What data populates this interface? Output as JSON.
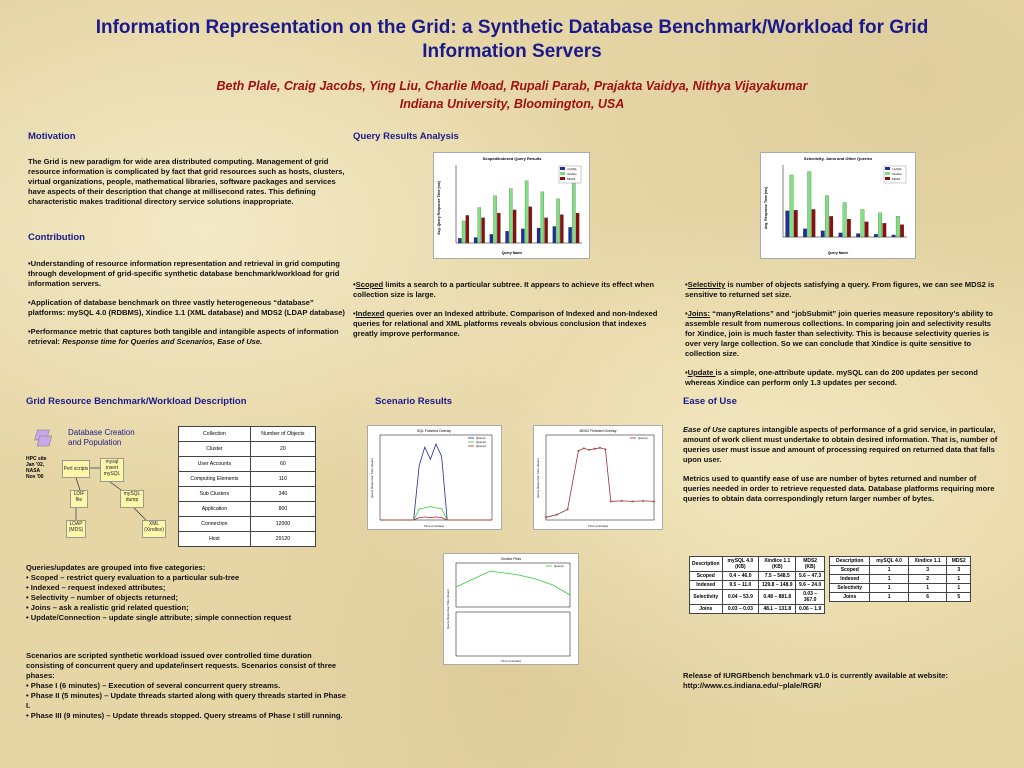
{
  "title": "Information Representation on the Grid: a Synthetic Database Benchmark/Workload for Grid Information Servers",
  "authors": "Beth Plale, Craig Jacobs, Ying Liu, Charlie Moad, Rupali Parab, Prajakta Vaidya, Nithya Vijayakumar",
  "affiliation": "Indiana University, Bloomington, USA",
  "motivation": {
    "heading": "Motivation",
    "text": "The Grid is new paradigm for wide area distributed computing. Management of grid resource information is complicated by fact that grid resources such as hosts, clusters, virtual organizations, people, mathematical libraries, software packages and services have aspects of their description that change at millisecond rates. This defining characteristic makes traditional directory service solutions inappropriate."
  },
  "contribution": {
    "heading": "Contribution",
    "b1": "•Understanding of resource information representation and retrieval in grid computing through development of grid-specific synthetic database benchmark/workload for grid information servers.",
    "b2": "•Application of database benchmark on three vastly heterogeneous “database” platforms: mySQL 4.0 (RDBMS), Xindice 1.1 (XML database) and MDS2 (LDAP database)",
    "b3_pre": "•Performance metric that captures both tangible and intangible aspects of information retrieval: ",
    "b3_em": "Response time for Queries and Scenarios,  Ease of Use."
  },
  "query_results": {
    "heading": "Query Results Analysis",
    "chart1_title": "Scoped/Indexed Query Results",
    "chart1_x": "Query Name",
    "chart1_y": "Avg. Query Response Time (ms)",
    "chart2_title": "Selectivity, Joins and Other Queries",
    "chart2_x": "Query Name",
    "chart2_y": "Avg. Response Time (ms)",
    "scoped_link": "Scoped",
    "scoped_text": " limits a search to a particular subtree. It appears to achieve its effect when collection size is large.",
    "indexed_link": "Indexed",
    "indexed_text": " queries over an Indexed attribute. Comparison of Indexed and non-Indexed queries for relational and XML platforms reveals obvious conclusion that indexes greatly improve performance.",
    "sel_link": "Selectivity",
    "sel_text": " is number of objects satisfying a query. From figures, we can see MDS2 is sensitive to returned set size.",
    "joins_link": "Joins:",
    "joins_text": " “manyRelations” and “jobSubmit” join queries measure  repository’s ability to assemble result from numerous collections. In comparing join and selectivity results for Xindice, join is much faster than selectivity. This is because selectivity queries is over very large collection. So we can conclude that Xindice is quite sensitive to collection size.",
    "update_link": "Update ",
    "update_text": "is a simple, one-attribute update. mySQL can do 200 updates per second whereas Xindice can perform only 1.3 updates per second."
  },
  "grid_desc": {
    "heading": "Grid Resource Benchmark/Workload Description",
    "diagram_title": "Database Creation and Population",
    "hpc_label": "HPC site Jan '02, NASA Nov '00",
    "node_perl": "Perl scripts",
    "node_mysql": "mysql insert mySQL",
    "node_ldif": "LDIF file",
    "node_dump": "mySQL dump",
    "node_ldap": "LDAP (MDS)",
    "node_xml": "XML (Xindice)",
    "table_header": [
      "Collection",
      "Number of Objects"
    ],
    "table_rows": [
      [
        "Cluster",
        "20"
      ],
      [
        "User Accounts",
        "60"
      ],
      [
        "Computing Elements",
        "110"
      ],
      [
        "Sub Clusters",
        "340"
      ],
      [
        "Application",
        "800"
      ],
      [
        "Connection",
        "12000"
      ],
      [
        "Host",
        "29120"
      ]
    ],
    "queries_intro": "Queries/updates are grouped into five categories:",
    "queries": [
      "• Scoped – restrict query evaluation to a particular sub-tree",
      "• Indexed – request indexed attributes;",
      "• Selectivity – number of objects returned;",
      "• Joins – ask a realistic grid related question;",
      "• Update/Connection – update single attribute; simple connection request"
    ],
    "scenario_intro": "Scenarios are scripted synthetic workload issued over  controlled time duration consisting of concurrent query and update/insert requests. Scenarios consist of three phases:",
    "phases": [
      "• Phase I (6 minutes)  – Execution of several concurrent query streams.",
      "• Phase II (5 minutes) – Update threads started along with query threads started in Phase I.",
      "• Phase III (9 minutes) – Update threads stopped. Query streams of Phase I still running."
    ]
  },
  "scenario": {
    "heading": "Scenario Results",
    "c1_title": "SQL Finished Overlay",
    "c2_title": "MDS2 Finished Overlay",
    "c3_title": "Xindice Plots",
    "x_label": "Time (minutes)",
    "y_label": "Query Response Time (msec)",
    "legend": [
      "Query1",
      "Query2",
      "Query3"
    ]
  },
  "ease": {
    "heading": "Ease of Use",
    "p1_em": "Ease of Use",
    "p1_text": " captures intangible aspects of performance of a grid service, in particular, amount of work client must undertake to obtain desired information. That is, number of queries user must issue and amount of processing required on returned data that falls upon user.",
    "p2": "Metrics used to quantify ease of use are number of bytes returned and number of queries needed in order to retrieve requested data. Database platforms requiring more queries to obtain data correspondingly return larger number of bytes.",
    "t1_header": [
      "Description",
      "mySQL 4.0 (KB)",
      "Xindice 1.1 (KB)",
      "MDS2 (KB)"
    ],
    "t1_rows": [
      [
        "Scoped",
        "0.4 – 46.0",
        "7.5 – 548.5",
        "5.6 – 47.3"
      ],
      [
        "Indexed",
        "9.5 – 11.0",
        "129.8 – 148.9",
        "9.6 – 24.0"
      ],
      [
        "Selectivity",
        "0.04 – 53.9",
        "0.48 – 881.8",
        "0.03 – 367.0"
      ],
      [
        "Joins",
        "0.03 – 0.03",
        "48.1 – 131.8",
        "0.06 – 1.9"
      ]
    ],
    "t2_header": [
      "Description",
      "mySQL 4.0",
      "Xindice 1.1",
      "MDS2"
    ],
    "t2_rows": [
      [
        "Scoped",
        "1",
        "3",
        "3"
      ],
      [
        "Indexed",
        "1",
        "2",
        "1"
      ],
      [
        "Selectivity",
        "1",
        "1",
        "1"
      ],
      [
        "Joins",
        "1",
        "6",
        "5"
      ]
    ],
    "release": "Release of IURGRbench benchmark v1.0 is currently available at website: http://www.cs.indiana.edu/~plale/RGR/"
  },
  "colors": {
    "title": "#1a1a8c",
    "authors": "#a01010",
    "mysql": "#1f2f9a",
    "xindice": "#7fe07f",
    "mds2": "#8a1010"
  },
  "chart_data": [
    {
      "type": "bar",
      "title": "Scoped/Indexed Query Results",
      "xlabel": "Query Name",
      "ylabel": "Avg. Query Response Time (ms)",
      "categories": [
        "q1",
        "q2",
        "q3",
        "q4",
        "q5",
        "q6",
        "q7",
        "q8"
      ],
      "series": [
        {
          "name": "mySQL",
          "values": [
            60,
            70,
            110,
            150,
            180,
            190,
            210,
            200
          ]
        },
        {
          "name": "Xindice",
          "values": [
            280,
            450,
            600,
            690,
            790,
            650,
            560,
            900
          ]
        },
        {
          "name": "MDS2",
          "values": [
            350,
            320,
            380,
            420,
            460,
            320,
            360,
            380
          ]
        }
      ]
    },
    {
      "type": "bar",
      "title": "Selectivity, Joins and Other Queries",
      "xlabel": "Query Name",
      "ylabel": "Avg. Response Time (ms)",
      "categories": [
        "q1",
        "q2",
        "q3",
        "q4",
        "q5",
        "q6",
        "q7"
      ],
      "series": [
        {
          "name": "mySQL",
          "values": [
            380,
            120,
            90,
            60,
            50,
            40,
            30
          ]
        },
        {
          "name": "Xindice",
          "values": [
            900,
            950,
            600,
            500,
            400,
            350,
            300
          ]
        },
        {
          "name": "MDS2",
          "values": [
            390,
            400,
            300,
            260,
            220,
            200,
            180
          ]
        }
      ]
    },
    {
      "type": "line",
      "title": "SQL Finished Overlay",
      "xlabel": "Time (minutes)",
      "ylabel": "Query Response Time (msec)",
      "x": [
        0,
        2,
        4,
        6,
        7,
        8,
        9,
        10,
        11,
        12,
        14,
        16,
        18,
        20
      ],
      "series": [
        {
          "name": "Query1",
          "values": [
            0,
            0,
            0,
            0,
            90,
            120,
            100,
            125,
            105,
            0,
            0,
            0,
            0,
            0
          ]
        },
        {
          "name": "Query2",
          "values": [
            0,
            0,
            0,
            0,
            18,
            20,
            22,
            20,
            19,
            0,
            0,
            0,
            0,
            0
          ]
        },
        {
          "name": "Query3",
          "values": [
            0,
            0,
            0,
            0,
            4,
            5,
            4,
            5,
            4,
            0,
            0,
            0,
            0,
            0
          ]
        }
      ]
    },
    {
      "type": "line",
      "title": "MDS2 Finished Overlay",
      "xlabel": "Time (minutes)",
      "ylabel": "Query Response Time (msec)",
      "x": [
        0,
        2,
        4,
        6,
        7,
        8,
        9,
        10,
        11,
        12,
        14,
        16,
        18,
        20
      ],
      "series": [
        {
          "name": "Query1",
          "values": [
            5,
            10,
            20,
            130,
            135,
            132,
            134,
            136,
            133,
            35,
            36,
            35,
            36,
            35
          ]
        }
      ]
    },
    {
      "type": "line",
      "title": "Xindice Plots",
      "xlabel": "Time (minutes)",
      "ylabel": "Query Response Time (msec)",
      "x": [
        0,
        6,
        11,
        14,
        17,
        20
      ],
      "series": [
        {
          "name": "Query1",
          "values": [
            50,
            90,
            80,
            70,
            55,
            30
          ]
        }
      ]
    }
  ]
}
